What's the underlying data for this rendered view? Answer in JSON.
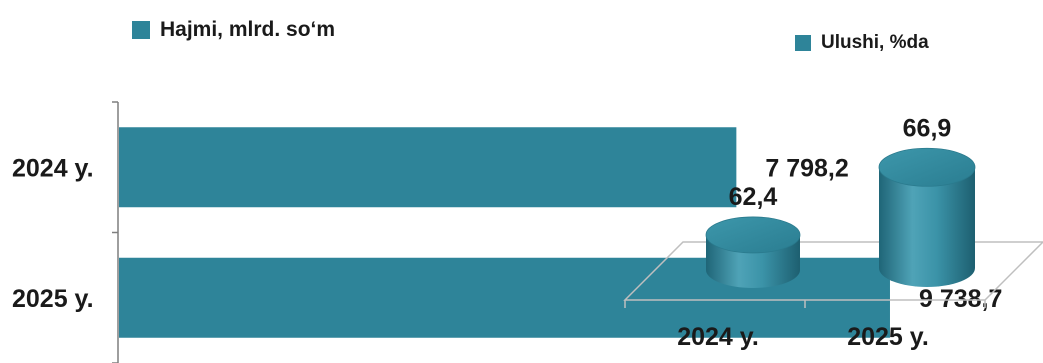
{
  "colors": {
    "bar": "#2e8499",
    "cyl_light": "#5aaabd",
    "cyl_dark": "#1f6577",
    "axis": "#7f7f7f",
    "floor": "#bfbfbf"
  },
  "chart_data": [
    {
      "type": "bar",
      "orientation": "horizontal",
      "legend": "Hajmi, mlrd. so‘m",
      "categories": [
        "2024 y.",
        "2025 y."
      ],
      "values": [
        7798.2,
        9738.7
      ],
      "value_labels": [
        "7 798,2",
        "9 738,7"
      ],
      "xlim": [
        0,
        12000
      ],
      "grid": false,
      "legend_position": "top"
    },
    {
      "type": "bar",
      "style": "3d-cylinder",
      "legend": "Ulushi, %da",
      "categories": [
        "2024 y.",
        "2025 y."
      ],
      "values": [
        62.4,
        66.9
      ],
      "value_labels": [
        "62,4",
        "66,9"
      ],
      "ylim": [
        60,
        70
      ],
      "grid": false,
      "legend_position": "top-right"
    }
  ]
}
